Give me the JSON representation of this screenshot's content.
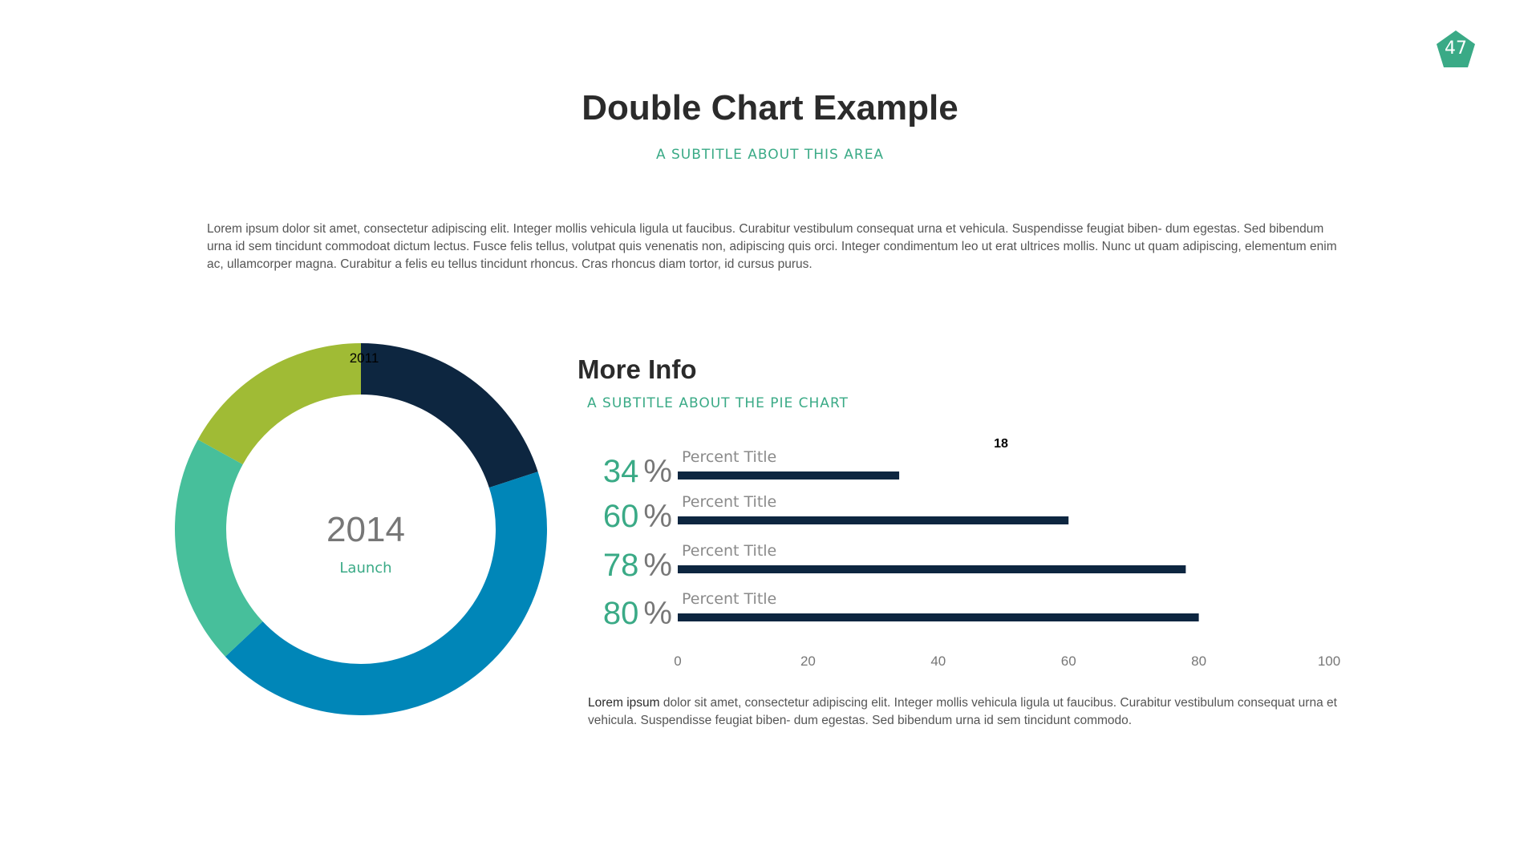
{
  "page_number": "47",
  "title": "Double Chart Example",
  "subtitle": "A SUBTITLE ABOUT THIS AREA",
  "intro_text": "Lorem ipsum dolor sit amet, consectetur adipiscing elit. Integer mollis vehicula ligula ut faucibus. Curabitur vestibulum consequat urna et vehicula. Suspendisse feugiat biben- dum egestas. Sed bibendum urna id sem tincidunt commodoat dictum lectus. Fusce felis tellus, volutpat quis venenatis non, adipiscing quis orci. Integer condimentum leo ut erat ultrices mollis. Nunc ut quam adipiscing, elementum enim ac, ullamcorper magna. Curabitur a felis eu tellus tincidunt rhoncus. Cras rhoncus diam tortor, id cursus purus.",
  "more_info": {
    "title": "More Info",
    "subtitle": "A SUBTITLE ABOUT THE PIE CHART"
  },
  "bottom_text": {
    "lead": "Lorem ipsum",
    "body": " dolor sit amet, consectetur adipiscing elit. Integer mollis vehicula ligula ut faucibus. Curabitur vestibulum consequat urna et vehicula. Suspendisse feugiat biben- dum egestas. Sed bibendum urna id sem tincidunt commodo."
  },
  "colors": {
    "accent": "#3aaa86",
    "navy": "#0d2640",
    "blue": "#0086b8",
    "teal": "#47bf9b",
    "lime": "#a0bb35",
    "gray": "#777777"
  },
  "chart_data": [
    {
      "type": "pie",
      "style": "donut",
      "center_label": "2014",
      "center_sublabel": "Launch",
      "slice_labels": [
        "2011"
      ],
      "values": [
        20,
        43,
        20,
        17
      ],
      "colors": [
        "#0d2640",
        "#0086b8",
        "#47bf9b",
        "#a0bb35"
      ]
    },
    {
      "type": "bar",
      "orientation": "horizontal",
      "categories": [
        "Percent Title",
        "Percent Title",
        "Percent Title",
        "Percent Title"
      ],
      "values": [
        34,
        60,
        78,
        80
      ],
      "value_labels": [
        "34",
        "60",
        "78",
        "80"
      ],
      "percent_sign": "%",
      "xlim": [
        0,
        100
      ],
      "xticks": [
        "0",
        "20",
        "40",
        "60",
        "80",
        "100"
      ],
      "annotation": "18",
      "bar_color": "#0d2640"
    }
  ]
}
